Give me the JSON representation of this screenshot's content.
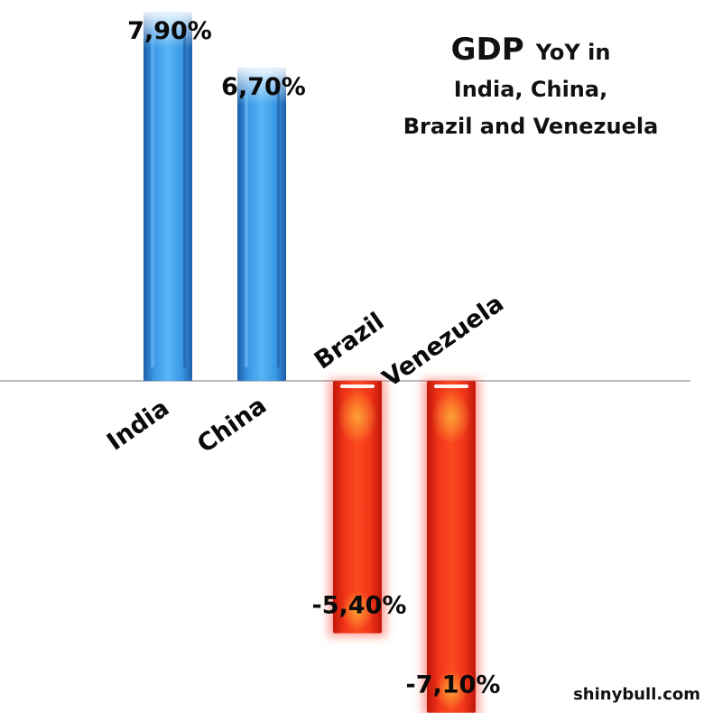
{
  "chart_data": {
    "type": "bar",
    "title_main": "GDP",
    "title_rest": "YoY in",
    "title_line2": "India, China,",
    "title_line3": "Brazil and Venezuela",
    "categories": [
      "India",
      "China",
      "Brazil",
      "Venezuela"
    ],
    "values": [
      7.9,
      6.7,
      -5.4,
      -7.1
    ],
    "value_labels": [
      "7,90%",
      "6,70%",
      "-5,40%",
      "-7,10%"
    ],
    "ylim": [
      -7.1,
      7.9
    ],
    "grid": false,
    "colors": {
      "positive": "#2e86d8",
      "negative": "#ee2a14",
      "axis": "#777777"
    }
  },
  "source": "shinybull.com"
}
